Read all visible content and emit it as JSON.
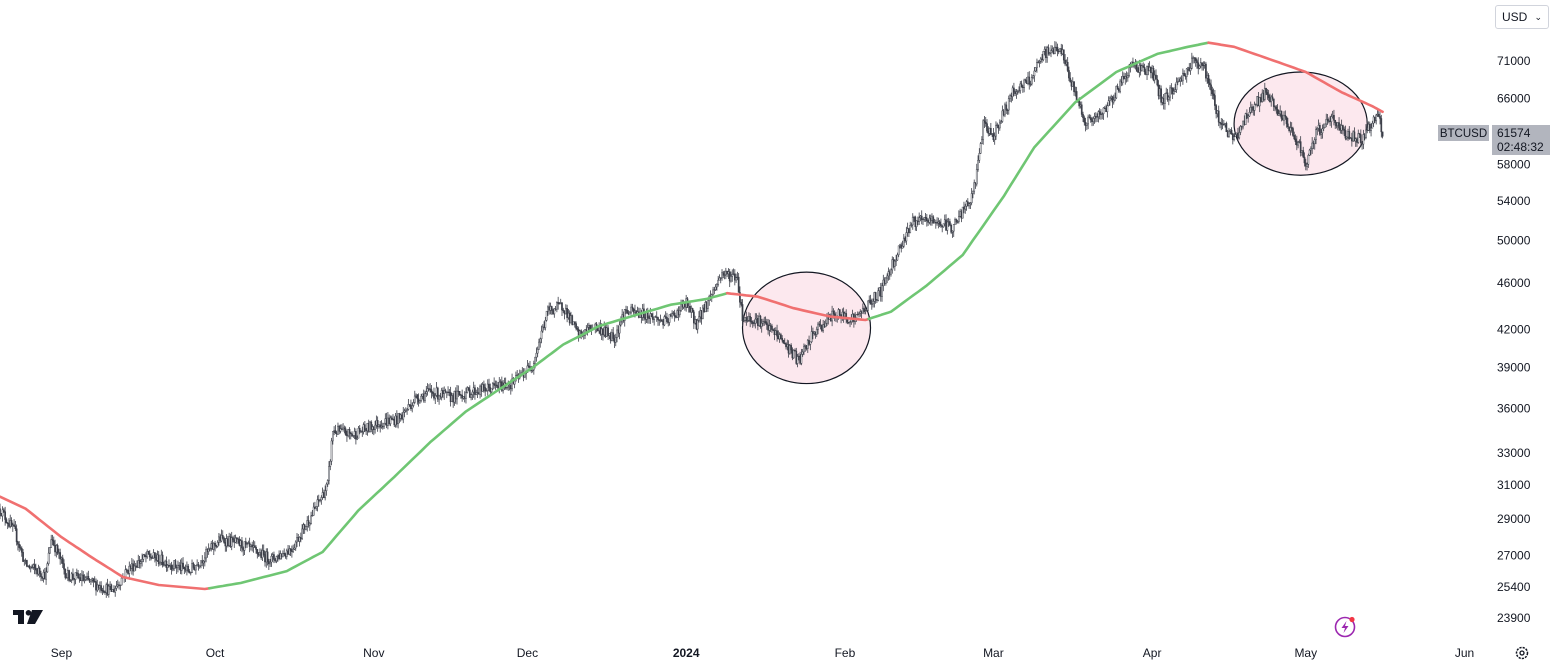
{
  "currency": {
    "selected": "USD",
    "chevron": "⌄"
  },
  "ticker": {
    "symbol": "BTCUSD",
    "last_price": "61574",
    "countdown": "02:48:32",
    "badge_color": "#b2b5be"
  },
  "icons": {
    "logo": "tradingview-logo-icon",
    "replay": "lightning-replay-icon",
    "settings": "gear-icon"
  },
  "colors": {
    "candles": "#3b3e48",
    "ma_up": "#6fc673",
    "ma_down": "#f07070",
    "highlight_fill": "#fce8ee",
    "highlight_stroke": "#131722"
  },
  "chart_data": {
    "type": "line",
    "scale": "log",
    "title": "",
    "xlabel": "",
    "ylabel": "",
    "x_range": [
      "2023-08-20",
      "2024-06-05"
    ],
    "ylim": [
      22900,
      80000
    ],
    "yticks": [
      23900,
      25400,
      27000,
      29000,
      31000,
      33000,
      36000,
      39000,
      42000,
      46000,
      50000,
      54000,
      58000,
      66000,
      71000
    ],
    "xticks": [
      {
        "date": "2023-09-01",
        "label": "Sep",
        "bold": false
      },
      {
        "date": "2023-10-01",
        "label": "Oct",
        "bold": false
      },
      {
        "date": "2023-11-01",
        "label": "Nov",
        "bold": false
      },
      {
        "date": "2023-12-01",
        "label": "Dec",
        "bold": false
      },
      {
        "date": "2024-01-01",
        "label": "2024",
        "bold": true
      },
      {
        "date": "2024-02-01",
        "label": "Feb",
        "bold": false
      },
      {
        "date": "2024-03-01",
        "label": "Mar",
        "bold": false
      },
      {
        "date": "2024-04-01",
        "label": "Apr",
        "bold": false
      },
      {
        "date": "2024-05-01",
        "label": "May",
        "bold": false
      },
      {
        "date": "2024-06-01",
        "label": "Jun",
        "bold": false
      }
    ],
    "series": [
      {
        "role": "price",
        "points": [
          [
            "2023-08-20",
            29600
          ],
          [
            "2023-08-23",
            28200
          ],
          [
            "2023-08-25",
            26500
          ],
          [
            "2023-08-29",
            26000
          ],
          [
            "2023-08-30",
            28000
          ],
          [
            "2023-09-02",
            26000
          ],
          [
            "2023-09-05",
            25800
          ],
          [
            "2023-09-11",
            25200
          ],
          [
            "2023-09-14",
            26300
          ],
          [
            "2023-09-18",
            27000
          ],
          [
            "2023-09-22",
            26600
          ],
          [
            "2023-09-26",
            26200
          ],
          [
            "2023-09-29",
            27000
          ],
          [
            "2023-10-02",
            27900
          ],
          [
            "2023-10-06",
            27600
          ],
          [
            "2023-10-12",
            26800
          ],
          [
            "2023-10-16",
            27400
          ],
          [
            "2023-10-20",
            29300
          ],
          [
            "2023-10-23",
            31000
          ],
          [
            "2023-10-24",
            34500
          ],
          [
            "2023-10-28",
            34200
          ],
          [
            "2023-11-02",
            35000
          ],
          [
            "2023-11-06",
            35300
          ],
          [
            "2023-11-09",
            36700
          ],
          [
            "2023-11-12",
            37200
          ],
          [
            "2023-11-16",
            36800
          ],
          [
            "2023-11-20",
            37200
          ],
          [
            "2023-11-24",
            37500
          ],
          [
            "2023-11-28",
            37800
          ],
          [
            "2023-12-02",
            39200
          ],
          [
            "2023-12-05",
            43600
          ],
          [
            "2023-12-08",
            44000
          ],
          [
            "2023-12-11",
            41500
          ],
          [
            "2023-12-14",
            42300
          ],
          [
            "2023-12-18",
            41400
          ],
          [
            "2023-12-20",
            43500
          ],
          [
            "2023-12-24",
            43300
          ],
          [
            "2023-12-28",
            42600
          ],
          [
            "2024-01-01",
            44200
          ],
          [
            "2024-01-03",
            42500
          ],
          [
            "2024-01-08",
            46900
          ],
          [
            "2024-01-11",
            46500
          ],
          [
            "2024-01-12",
            43000
          ],
          [
            "2024-01-15",
            42800
          ],
          [
            "2024-01-19",
            41500
          ],
          [
            "2024-01-23",
            39500
          ],
          [
            "2024-01-26",
            41800
          ],
          [
            "2024-01-30",
            43300
          ],
          [
            "2024-02-03",
            42900
          ],
          [
            "2024-02-08",
            45300
          ],
          [
            "2024-02-10",
            47500
          ],
          [
            "2024-02-14",
            51800
          ],
          [
            "2024-02-18",
            52000
          ],
          [
            "2024-02-22",
            51300
          ],
          [
            "2024-02-26",
            54500
          ],
          [
            "2024-02-28",
            62500
          ],
          [
            "2024-03-01",
            61500
          ],
          [
            "2024-03-05",
            67000
          ],
          [
            "2024-03-08",
            68200
          ],
          [
            "2024-03-11",
            72000
          ],
          [
            "2024-03-14",
            73000
          ],
          [
            "2024-03-16",
            68500
          ],
          [
            "2024-03-19",
            63000
          ],
          [
            "2024-03-22",
            63800
          ],
          [
            "2024-03-25",
            67000
          ],
          [
            "2024-03-28",
            70500
          ],
          [
            "2024-04-01",
            69500
          ],
          [
            "2024-04-03",
            65600
          ],
          [
            "2024-04-06",
            68000
          ],
          [
            "2024-04-09",
            71000
          ],
          [
            "2024-04-11",
            70500
          ],
          [
            "2024-04-14",
            63500
          ],
          [
            "2024-04-17",
            60800
          ],
          [
            "2024-04-20",
            64500
          ],
          [
            "2024-04-23",
            66600
          ],
          [
            "2024-04-26",
            64000
          ],
          [
            "2024-04-30",
            60000
          ],
          [
            "2024-05-01",
            57500
          ],
          [
            "2024-05-03",
            61700
          ],
          [
            "2024-05-06",
            63500
          ],
          [
            "2024-05-09",
            61500
          ],
          [
            "2024-05-12",
            61000
          ],
          [
            "2024-05-15",
            64000
          ],
          [
            "2024-05-16",
            61574
          ]
        ]
      },
      {
        "role": "moving-average",
        "points": [
          [
            "2023-08-20",
            30300
          ],
          [
            "2023-08-25",
            29600
          ],
          [
            "2023-09-01",
            28000
          ],
          [
            "2023-09-07",
            26900
          ],
          [
            "2023-09-13",
            25900
          ],
          [
            "2023-09-20",
            25500
          ],
          [
            "2023-09-29",
            25300
          ],
          [
            "2023-10-06",
            25600
          ],
          [
            "2023-10-15",
            26200
          ],
          [
            "2023-10-22",
            27200
          ],
          [
            "2023-10-29",
            29500
          ],
          [
            "2023-11-05",
            31500
          ],
          [
            "2023-11-12",
            33700
          ],
          [
            "2023-11-19",
            35800
          ],
          [
            "2023-11-26",
            37500
          ],
          [
            "2023-12-02",
            39000
          ],
          [
            "2023-12-08",
            40800
          ],
          [
            "2023-12-15",
            42300
          ],
          [
            "2023-12-22",
            43200
          ],
          [
            "2023-12-29",
            44100
          ],
          [
            "2024-01-05",
            44600
          ],
          [
            "2024-01-09",
            45100
          ],
          [
            "2024-01-15",
            44800
          ],
          [
            "2024-01-22",
            43800
          ],
          [
            "2024-01-29",
            43100
          ],
          [
            "2024-02-05",
            42800
          ],
          [
            "2024-02-10",
            43500
          ],
          [
            "2024-02-17",
            45800
          ],
          [
            "2024-02-24",
            48600
          ],
          [
            "2024-03-03",
            54500
          ],
          [
            "2024-03-09",
            60000
          ],
          [
            "2024-03-17",
            65500
          ],
          [
            "2024-03-25",
            69500
          ],
          [
            "2024-04-02",
            72000
          ],
          [
            "2024-04-08",
            73000
          ],
          [
            "2024-04-12",
            73600
          ],
          [
            "2024-04-17",
            73000
          ],
          [
            "2024-04-25",
            71000
          ],
          [
            "2024-05-01",
            69500
          ],
          [
            "2024-05-08",
            66800
          ],
          [
            "2024-05-14",
            65000
          ],
          [
            "2024-05-16",
            64300
          ]
        ],
        "falling_segments": [
          [
            "2023-08-20",
            "2023-09-29"
          ],
          [
            "2024-01-09",
            "2024-02-05"
          ],
          [
            "2024-04-12",
            "2024-05-16"
          ]
        ]
      }
    ],
    "annotations": [
      {
        "type": "circle",
        "start": "2024-01-12",
        "end": "2024-02-06",
        "price_top": 47000,
        "price_bottom": 37800
      },
      {
        "type": "circle",
        "start": "2024-04-17",
        "end": "2024-05-13",
        "price_top": 69500,
        "price_bottom": 56800
      }
    ]
  }
}
